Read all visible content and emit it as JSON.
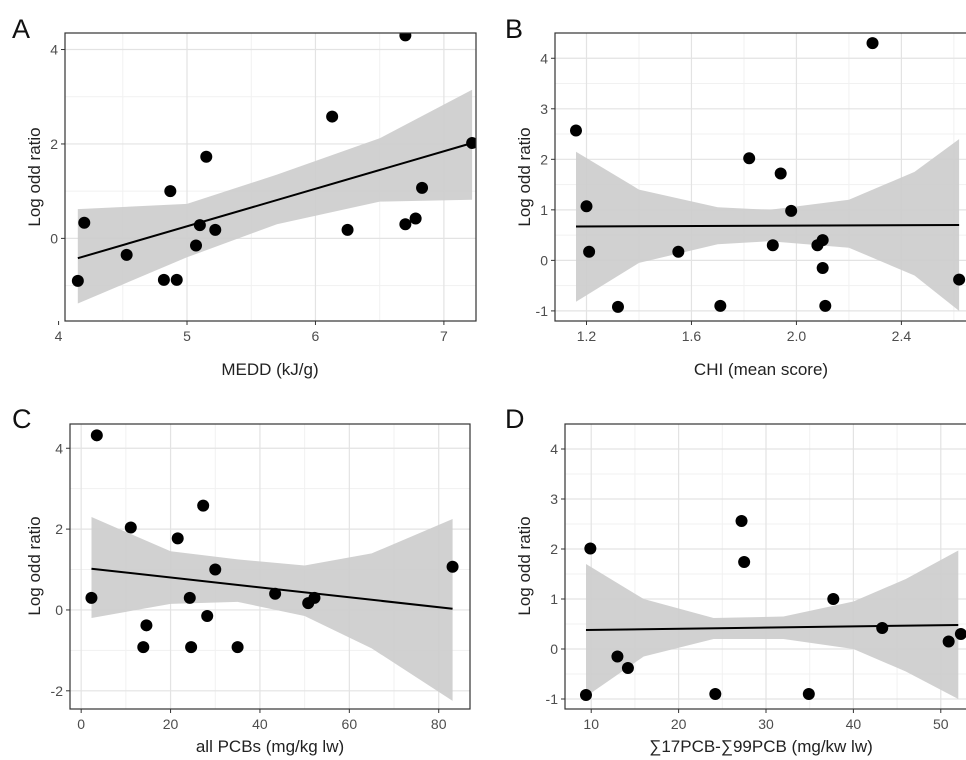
{
  "figure": {
    "colors": {
      "point": "#000000",
      "fit_line": "#000000",
      "ci_band": "#cccccc",
      "grid_major": "#e3e3e3",
      "grid_minor": "#f1f1f1",
      "border": "#333333"
    }
  },
  "chart_data": [
    {
      "panel": "A",
      "type": "scatter",
      "xlabel": "MEDD (kJ/g)",
      "ylabel": "Log odd ratio",
      "xlim": [
        4.05,
        7.25
      ],
      "ylim": [
        -1.75,
        4.35
      ],
      "xticks": [
        4,
        5,
        6,
        7
      ],
      "xtick_labels": [
        "4",
        "5",
        "6",
        "7"
      ],
      "yticks": [
        0,
        2,
        4
      ],
      "ytick_labels": [
        "0",
        "2",
        "4"
      ],
      "grid": true,
      "points": [
        [
          4.15,
          -0.9
        ],
        [
          4.2,
          0.33
        ],
        [
          4.53,
          -0.35
        ],
        [
          4.82,
          -0.88
        ],
        [
          4.87,
          1.0
        ],
        [
          4.92,
          -0.88
        ],
        [
          5.07,
          -0.15
        ],
        [
          5.1,
          0.28
        ],
        [
          5.15,
          1.73
        ],
        [
          5.22,
          0.18
        ],
        [
          6.13,
          2.58
        ],
        [
          6.25,
          0.18
        ],
        [
          6.7,
          4.3
        ],
        [
          6.7,
          0.3
        ],
        [
          6.78,
          0.42
        ],
        [
          6.83,
          1.07
        ],
        [
          7.22,
          2.02
        ]
      ],
      "fit_line": [
        [
          4.15,
          -0.42
        ],
        [
          7.22,
          2.02
        ]
      ],
      "ci_band": {
        "x": [
          4.15,
          5.0,
          5.7,
          6.5,
          7.22
        ],
        "lower": [
          -1.38,
          -0.4,
          0.3,
          0.78,
          0.82
        ],
        "upper": [
          0.62,
          0.73,
          1.35,
          2.12,
          3.15
        ]
      }
    },
    {
      "panel": "B",
      "type": "scatter",
      "xlabel": "CHI (mean score)",
      "ylabel": "Log odd ratio",
      "xlim": [
        1.08,
        2.65
      ],
      "ylim": [
        -1.2,
        4.5
      ],
      "xticks": [
        1.2,
        1.6,
        2.0,
        2.4
      ],
      "xtick_labels": [
        "1.2",
        "1.6",
        "2.0",
        "2.4"
      ],
      "yticks": [
        -1,
        0,
        1,
        2,
        3,
        4
      ],
      "ytick_labels": [
        "-1",
        "0",
        "1",
        "2",
        "3",
        "4"
      ],
      "grid": true,
      "points": [
        [
          1.16,
          2.57
        ],
        [
          1.2,
          1.07
        ],
        [
          1.21,
          0.17
        ],
        [
          1.32,
          -0.92
        ],
        [
          1.55,
          0.17
        ],
        [
          1.71,
          -0.9
        ],
        [
          1.82,
          2.02
        ],
        [
          1.91,
          0.3
        ],
        [
          1.94,
          1.72
        ],
        [
          1.98,
          0.98
        ],
        [
          2.08,
          0.3
        ],
        [
          2.1,
          0.4
        ],
        [
          2.1,
          -0.15
        ],
        [
          2.11,
          -0.9
        ],
        [
          2.29,
          4.3
        ],
        [
          2.62,
          -0.38
        ]
      ],
      "fit_line": [
        [
          1.16,
          0.67
        ],
        [
          2.62,
          0.7
        ]
      ],
      "ci_band": {
        "x": [
          1.16,
          1.4,
          1.7,
          1.9,
          2.2,
          2.45,
          2.62
        ],
        "lower": [
          -0.82,
          -0.05,
          0.32,
          0.38,
          0.25,
          -0.3,
          -1.0
        ],
        "upper": [
          2.15,
          1.4,
          1.05,
          1.0,
          1.2,
          1.75,
          2.4
        ]
      }
    },
    {
      "panel": "C",
      "type": "scatter",
      "xlabel": "all PCBs (mg/kg lw)",
      "ylabel": "Log odd ratio",
      "xlim": [
        -2.5,
        87
      ],
      "ylim": [
        -2.45,
        4.6
      ],
      "xticks": [
        0,
        20,
        40,
        60,
        80
      ],
      "xtick_labels": [
        "0",
        "20",
        "40",
        "60",
        "80"
      ],
      "yticks": [
        -2,
        0,
        2,
        4
      ],
      "ytick_labels": [
        "-2",
        "0",
        "2",
        "4"
      ],
      "grid": true,
      "points": [
        [
          2.3,
          0.3
        ],
        [
          3.5,
          4.32
        ],
        [
          11.1,
          2.04
        ],
        [
          13.9,
          -0.92
        ],
        [
          14.6,
          -0.38
        ],
        [
          21.6,
          1.77
        ],
        [
          24.3,
          0.3
        ],
        [
          24.6,
          -0.92
        ],
        [
          27.3,
          2.58
        ],
        [
          28.2,
          -0.15
        ],
        [
          30.0,
          1.0
        ],
        [
          35.0,
          -0.92
        ],
        [
          43.4,
          0.4
        ],
        [
          50.8,
          0.17
        ],
        [
          52.2,
          0.3
        ],
        [
          83.1,
          1.07
        ]
      ],
      "fit_line": [
        [
          2.3,
          1.02
        ],
        [
          83.1,
          0.03
        ]
      ],
      "ci_band": {
        "x": [
          2.3,
          20,
          35,
          50,
          65,
          83.1
        ],
        "lower": [
          -0.2,
          0.15,
          0.2,
          -0.15,
          -0.95,
          -2.25
        ],
        "upper": [
          2.3,
          1.45,
          1.25,
          1.1,
          1.4,
          2.25
        ]
      }
    },
    {
      "panel": "D",
      "type": "scatter",
      "xlabel": "∑17PCB-∑99PCB (mg/kw lw)",
      "ylabel": "Log odd ratio",
      "xlim": [
        7,
        53
      ],
      "ylim": [
        -1.2,
        4.5
      ],
      "xticks": [
        10,
        20,
        30,
        40,
        50
      ],
      "xtick_labels": [
        "10",
        "20",
        "30",
        "40",
        "50"
      ],
      "yticks": [
        -1,
        0,
        1,
        2,
        3,
        4
      ],
      "ytick_labels": [
        "-1",
        "0",
        "1",
        "2",
        "3",
        "4"
      ],
      "grid": true,
      "points": [
        [
          9.4,
          -0.92
        ],
        [
          9.9,
          2.01
        ],
        [
          13.0,
          -0.15
        ],
        [
          14.2,
          -0.38
        ],
        [
          24.2,
          -0.9
        ],
        [
          27.2,
          2.56
        ],
        [
          27.5,
          1.74
        ],
        [
          34.9,
          -0.9
        ],
        [
          37.7,
          1.0
        ],
        [
          43.3,
          0.42
        ],
        [
          50.9,
          0.15
        ],
        [
          52.3,
          0.3
        ]
      ],
      "fit_line": [
        [
          9.4,
          0.38
        ],
        [
          52.0,
          0.48
        ]
      ],
      "ci_band": {
        "x": [
          9.4,
          16,
          24,
          32,
          40,
          46,
          52
        ],
        "lower": [
          -0.95,
          -0.15,
          0.2,
          0.2,
          0.0,
          -0.45,
          -1.0
        ],
        "upper": [
          1.7,
          1.0,
          0.62,
          0.65,
          0.95,
          1.4,
          1.97
        ]
      }
    }
  ]
}
